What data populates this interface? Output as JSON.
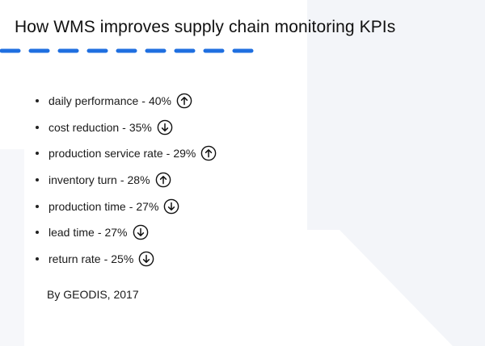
{
  "title": "How WMS improves supply chain monitoring KPIs",
  "separator": "-",
  "kpis": [
    {
      "label": "daily performance",
      "value": "40%",
      "direction": "up",
      "icon": "arrow-up-circle-icon"
    },
    {
      "label": "cost reduction",
      "value": "35%",
      "direction": "down",
      "icon": "arrow-down-circle-icon"
    },
    {
      "label": "production service rate",
      "value": "29%",
      "direction": "up",
      "icon": "arrow-up-circle-icon"
    },
    {
      "label": "inventory turn",
      "value": "28%",
      "direction": "up",
      "icon": "arrow-up-circle-icon"
    },
    {
      "label": "production time",
      "value": "27%",
      "direction": "down",
      "icon": "arrow-down-circle-icon"
    },
    {
      "label": "lead time",
      "value": "27%",
      "direction": "down",
      "icon": "arrow-down-circle-icon"
    },
    {
      "label": "return rate",
      "value": "25%",
      "direction": "down",
      "icon": "arrow-down-circle-icon"
    }
  ],
  "source": "By GEODIS, 2017",
  "colors": {
    "accent": "#1f6fe0",
    "background_shape": "#f3f5f9",
    "text": "#111111"
  }
}
